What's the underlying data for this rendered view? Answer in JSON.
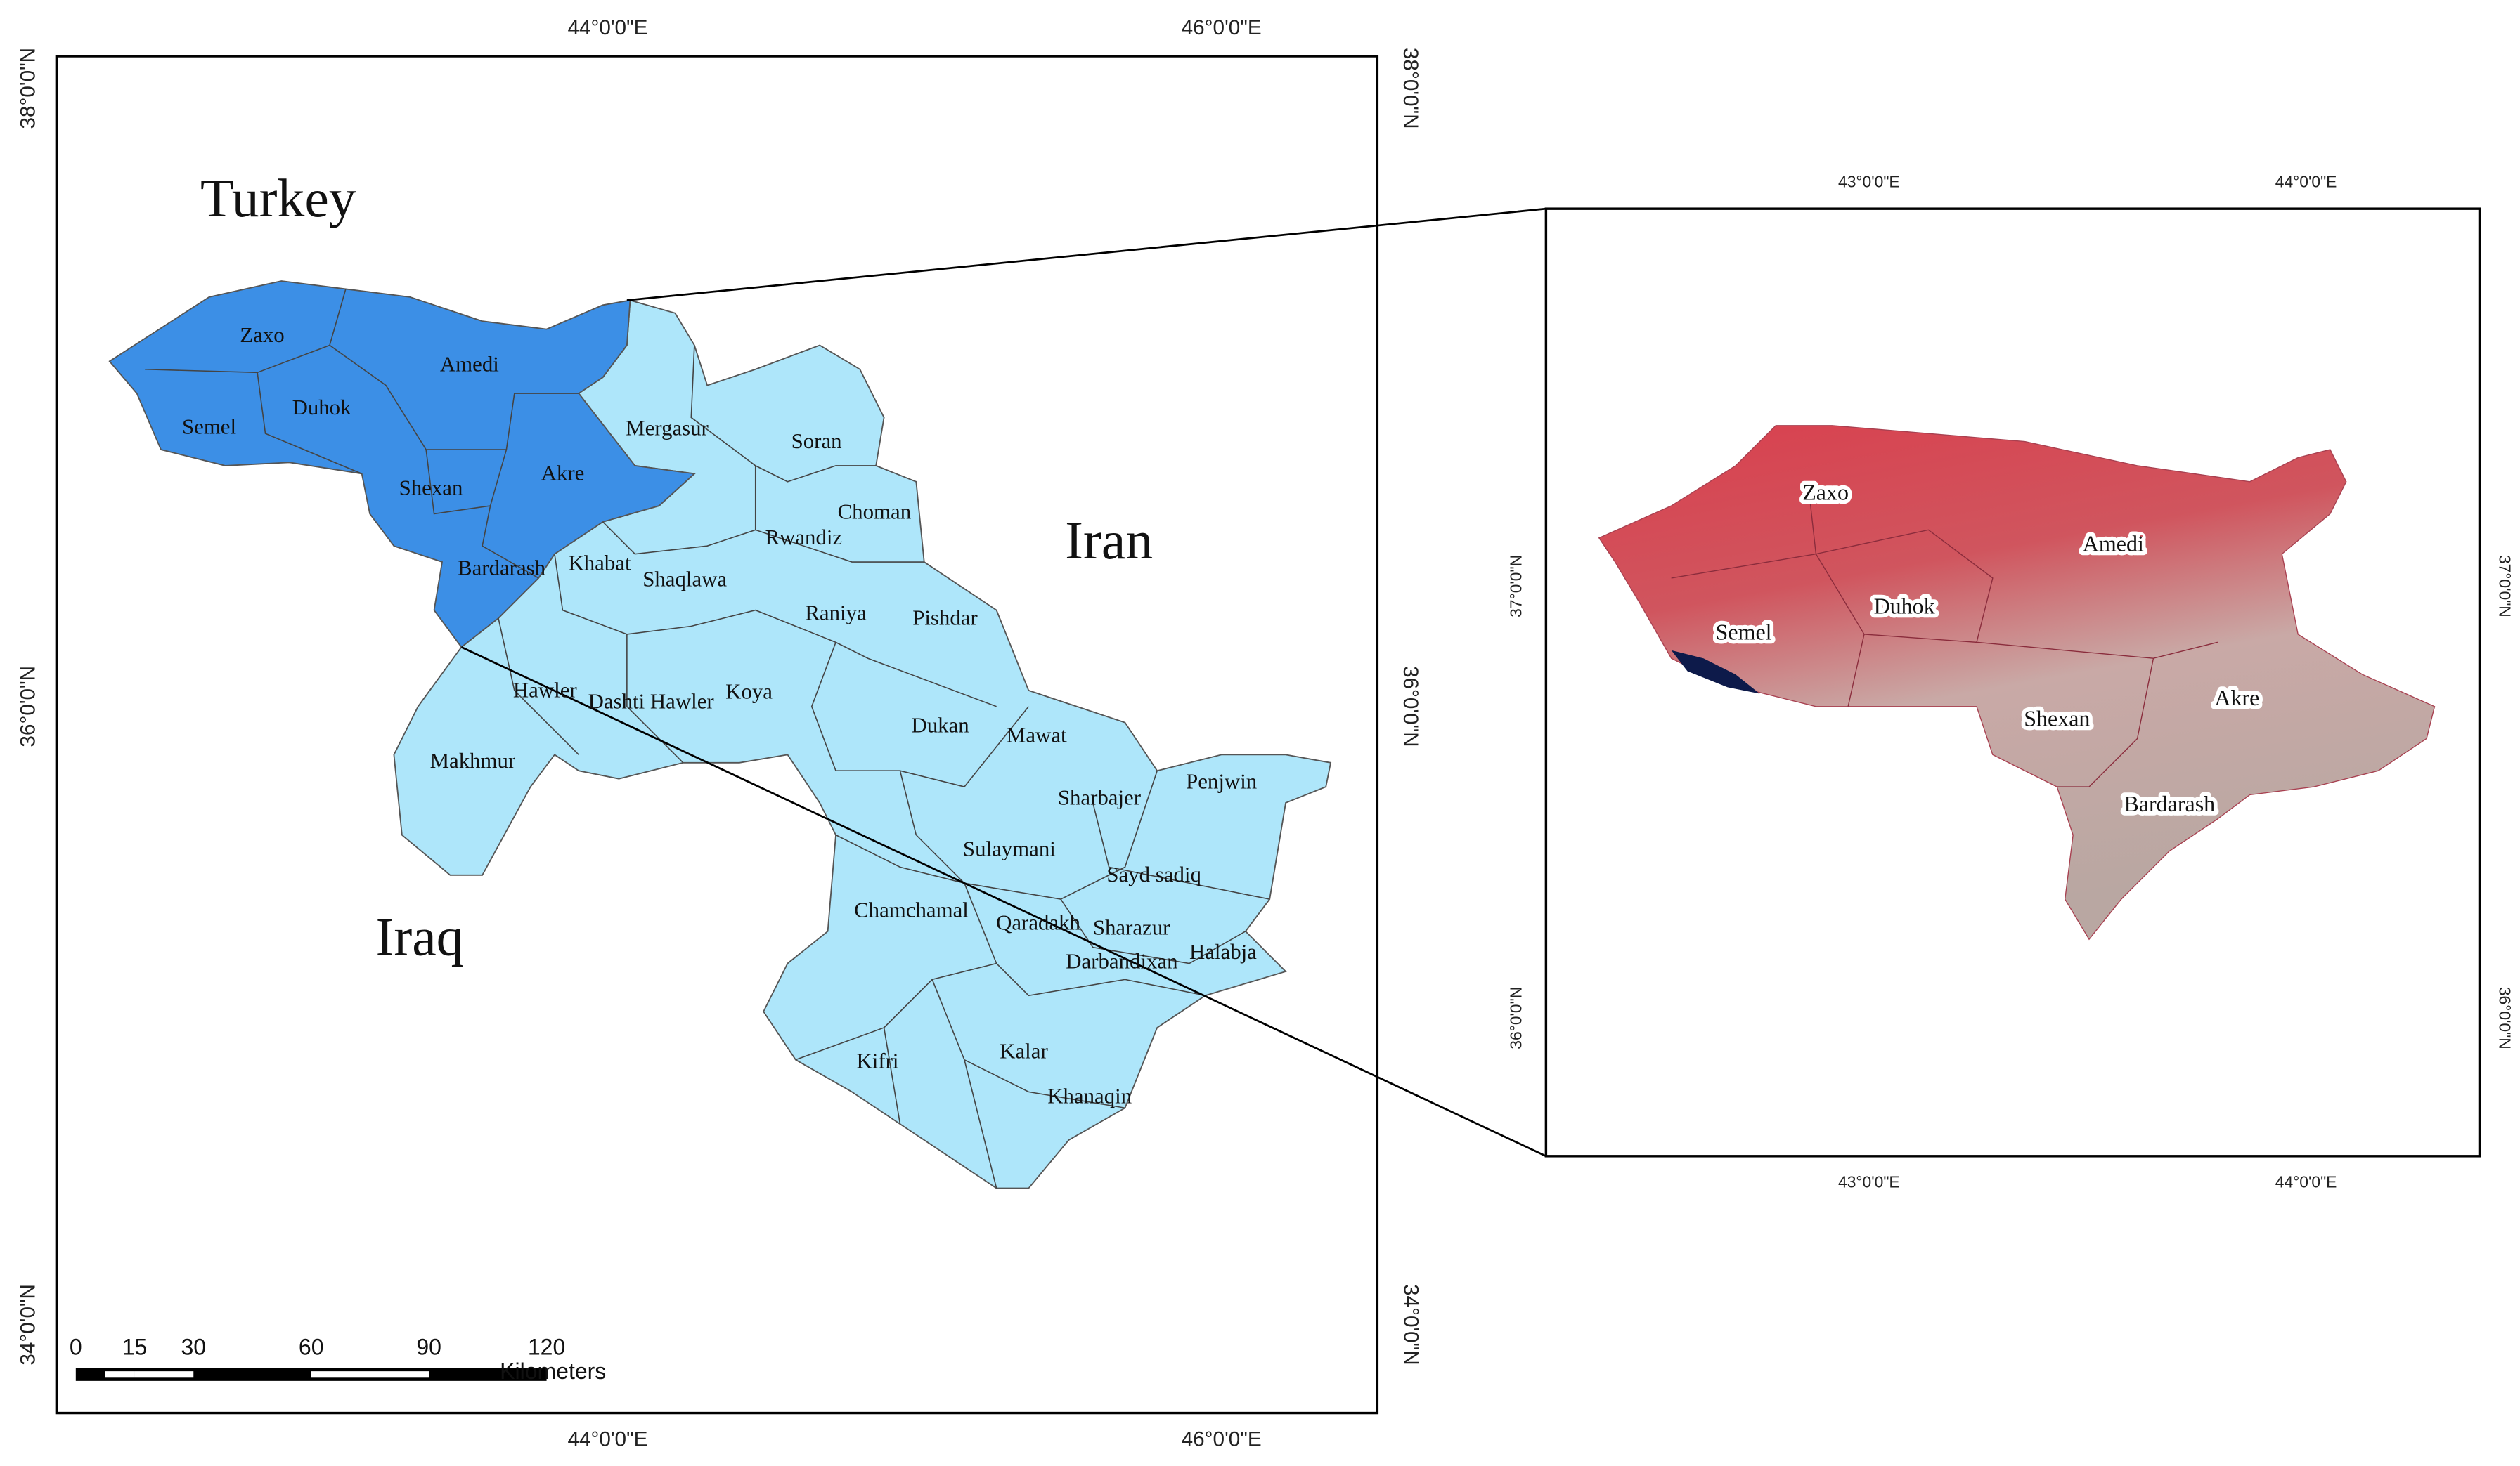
{
  "left_map": {
    "top_labels": [
      "44°0'0\"E",
      "46°0'0\"E"
    ],
    "bottom_labels": [
      "44°0'0\"E",
      "46°0'0\"E"
    ],
    "left_labels": [
      "38°0'0\"N",
      "36°0'0\"N",
      "34°0'0\"N"
    ],
    "right_labels": [
      "38°0'0\"N",
      "36°0'0\"N",
      "34°0'0\"N"
    ],
    "countries": [
      "Turkey",
      "Iran",
      "Iraq"
    ],
    "districts": [
      "Zaxo",
      "Amedi",
      "Duhok",
      "Semel",
      "Shexan",
      "Akre",
      "Bardarash",
      "Mergasur",
      "Soran",
      "Choman",
      "Rwandiz",
      "Khabat",
      "Shaqlawa",
      "Raniya",
      "Pishdar",
      "Hawler",
      "Dashti Hawler",
      "Koya",
      "Dukan",
      "Mawat",
      "Makhmur",
      "Penjwin",
      "Sharbajer",
      "Sulaymani",
      "Sayd sadiq",
      "Chamchamal",
      "Qaradakh",
      "Sharazur",
      "Darbandixan",
      "Halabja",
      "Kalar",
      "Kifri",
      "Khanaqin"
    ],
    "scale_bar": {
      "ticks": [
        0,
        15,
        30,
        60,
        90,
        120
      ],
      "unit": "Kilometers"
    }
  },
  "inset_map": {
    "top_labels": [
      "43°0'0\"E",
      "44°0'0\"E"
    ],
    "bottom_labels": [
      "43°0'0\"E",
      "44°0'0\"E"
    ],
    "left_labels": [
      "37°0'0\"N",
      "36°0'0\"N"
    ],
    "right_labels": [
      "37°0'0\"N",
      "36°0'0\"N"
    ],
    "districts": [
      "Zaxo",
      "Amedi",
      "Duhok",
      "Semel",
      "Shexan",
      "Akre",
      "Bardarash"
    ]
  }
}
